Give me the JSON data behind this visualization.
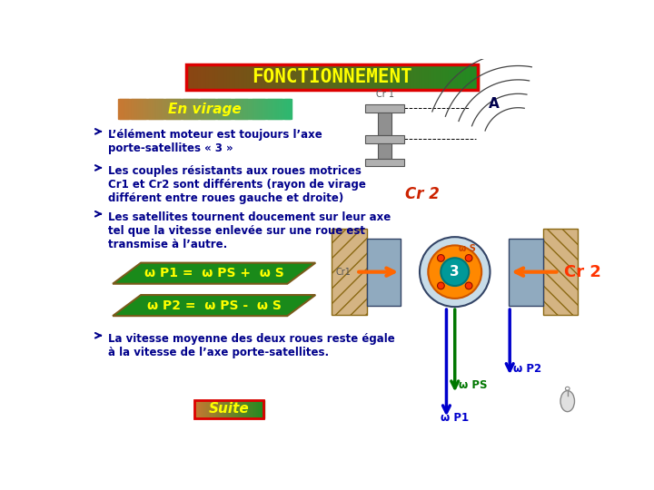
{
  "title": "FONCTIONNEMENT",
  "subtitle": "En virage",
  "bg_color": "#ffffff",
  "title_border": "#dd0000",
  "title_text_color": "#ffff00",
  "title_font_size": 15,
  "subtitle_text_color": "#ffff00",
  "subtitle_font_size": 11,
  "bullet_color": "#00008B",
  "bullet_font_size": 8.5,
  "bullets": [
    "L’élément moteur est toujours l’axe\nporte-satellites « 3 »",
    "Les couples résistants aux roues motrices\nCr1 et Cr2 sont différents (rayon de virage\ndifférent entre roues gauche et droite)",
    "Les satellites tournent doucement sur leur axe\ntel que la vitesse enlevée sur une roue est\ntransmise à l’autre."
  ],
  "formula1": "ω P1 =  ω PS +  ω S",
  "formula2": "ω P2 =  ω PS -  ω S",
  "formula_text_color": "#ffff00",
  "formula_bg_color": "#1a8a1a",
  "formula_font_size": 10,
  "last_bullet": "La vitesse moyenne des deux roues reste égale\nà la vitesse de l’axe porte-satellites.",
  "suite_text": "Suite",
  "suite_text_color": "#ffff00",
  "suite_border": "#dd0000",
  "omega_S": "ω S",
  "omega_P1": "ω P1",
  "omega_PS": "ω PS",
  "omega_P2": "ω P2"
}
